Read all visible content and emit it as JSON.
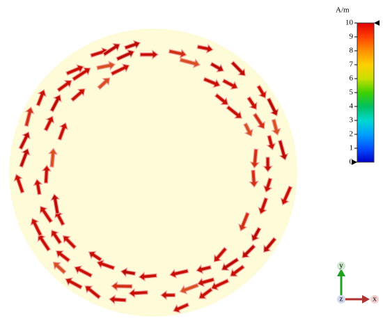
{
  "colorbar": {
    "unit": "A/m",
    "range": [
      0,
      10
    ],
    "ticks": [
      0,
      1,
      2,
      3,
      4,
      5,
      6,
      7,
      8,
      9,
      10
    ],
    "colors": [
      "#0000c8",
      "#0050ff",
      "#00a0ff",
      "#00d8d0",
      "#00c060",
      "#40d000",
      "#c8e000",
      "#ffd000",
      "#ff9000",
      "#ff4000",
      "#e00000"
    ]
  },
  "axes": {
    "y": "y",
    "x": "x",
    "z": "z"
  }
}
